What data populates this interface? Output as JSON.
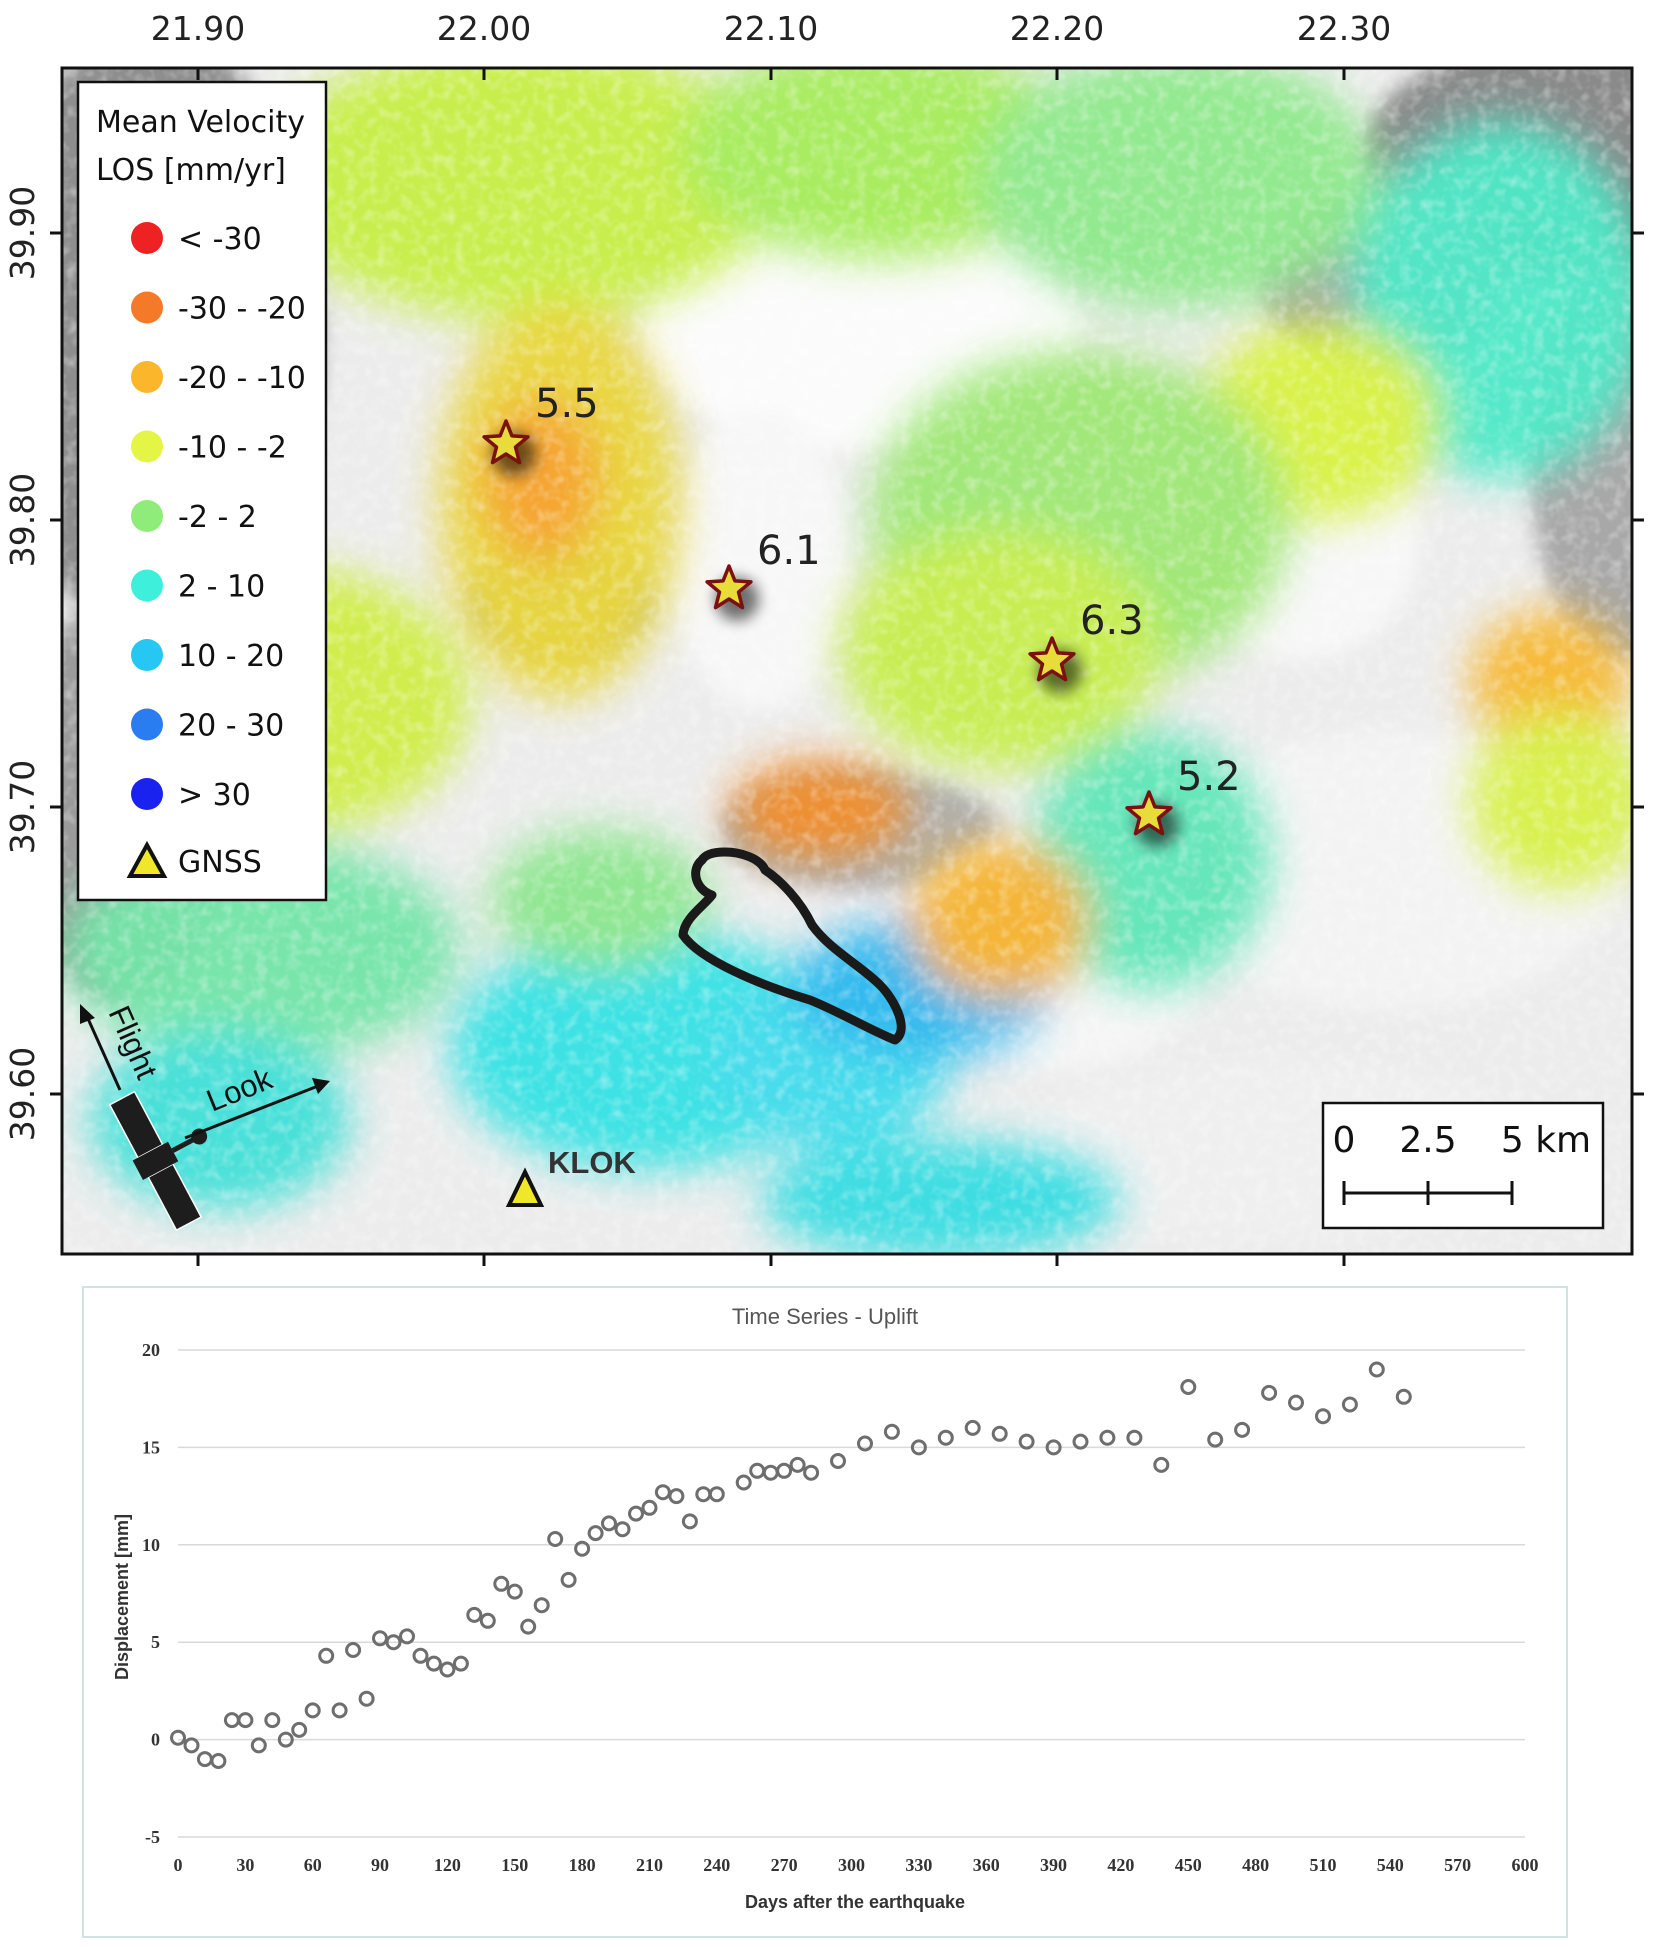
{
  "map": {
    "x_ticks": [
      "21.90",
      "22.00",
      "22.10",
      "22.20",
      "22.30"
    ],
    "y_ticks": [
      "39.90",
      "39.80",
      "39.70",
      "39.60"
    ],
    "legend": {
      "title_line1": "Mean Velocity",
      "title_line2": "LOS [mm/yr]",
      "items": [
        {
          "label": "< -30",
          "color": "#ee2222"
        },
        {
          "label": "-30 - -20",
          "color": "#f47a2a"
        },
        {
          "label": "-20 - -10",
          "color": "#fbb62c"
        },
        {
          "label": "-10 - -2",
          "color": "#e5f545"
        },
        {
          "label": "-2 - 2",
          "color": "#8fec7a"
        },
        {
          "label": "2 - 10",
          "color": "#3ef0dc"
        },
        {
          "label": "10 - 20",
          "color": "#27c7f3"
        },
        {
          "label": "20 - 30",
          "color": "#2a7df0"
        },
        {
          "label": "> 30",
          "color": "#1a22f0"
        }
      ],
      "gnss_label": "GNSS"
    },
    "earthquakes": [
      {
        "magnitude": "5.5"
      },
      {
        "magnitude": "6.1"
      },
      {
        "magnitude": "6.3"
      },
      {
        "magnitude": "5.2"
      }
    ],
    "station": "KLOK",
    "flight_label": "Flight",
    "look_label": "Look",
    "scale_bar": {
      "labels": [
        "0",
        "2.5",
        "5 km"
      ]
    }
  },
  "chart_data": {
    "type": "scatter",
    "title": "Time Series - Uplift",
    "xlabel": "Days after the earthquake",
    "ylabel": "Displacement [mm]",
    "xlim": [
      0,
      600
    ],
    "ylim": [
      -5,
      20
    ],
    "x_ticks": [
      0,
      30,
      60,
      90,
      120,
      150,
      180,
      210,
      240,
      270,
      300,
      330,
      360,
      390,
      420,
      450,
      480,
      510,
      540,
      570,
      600
    ],
    "y_ticks": [
      -5,
      0,
      5,
      10,
      15,
      20
    ],
    "grid": true,
    "points": [
      [
        0,
        0.1
      ],
      [
        6,
        -0.3
      ],
      [
        12,
        -1.0
      ],
      [
        18,
        -1.1
      ],
      [
        24,
        1.0
      ],
      [
        30,
        1.0
      ],
      [
        36,
        -0.3
      ],
      [
        42,
        1.0
      ],
      [
        48,
        0.0
      ],
      [
        54,
        0.5
      ],
      [
        60,
        1.5
      ],
      [
        66,
        4.3
      ],
      [
        72,
        1.5
      ],
      [
        78,
        4.6
      ],
      [
        84,
        2.1
      ],
      [
        90,
        5.2
      ],
      [
        96,
        5.0
      ],
      [
        102,
        5.3
      ],
      [
        108,
        4.3
      ],
      [
        114,
        3.9
      ],
      [
        120,
        3.6
      ],
      [
        126,
        3.9
      ],
      [
        132,
        6.4
      ],
      [
        138,
        6.1
      ],
      [
        144,
        8.0
      ],
      [
        150,
        7.6
      ],
      [
        156,
        5.8
      ],
      [
        162,
        6.9
      ],
      [
        168,
        10.3
      ],
      [
        174,
        8.2
      ],
      [
        180,
        9.8
      ],
      [
        186,
        10.6
      ],
      [
        192,
        11.1
      ],
      [
        198,
        10.8
      ],
      [
        204,
        11.6
      ],
      [
        210,
        11.9
      ],
      [
        216,
        12.7
      ],
      [
        222,
        12.5
      ],
      [
        228,
        11.2
      ],
      [
        234,
        12.6
      ],
      [
        240,
        12.6
      ],
      [
        252,
        13.2
      ],
      [
        258,
        13.8
      ],
      [
        264,
        13.7
      ],
      [
        270,
        13.8
      ],
      [
        276,
        14.1
      ],
      [
        282,
        13.7
      ],
      [
        294,
        14.3
      ],
      [
        306,
        15.2
      ],
      [
        318,
        15.8
      ],
      [
        330,
        15.0
      ],
      [
        342,
        15.5
      ],
      [
        354,
        16.0
      ],
      [
        366,
        15.7
      ],
      [
        378,
        15.3
      ],
      [
        390,
        15.0
      ],
      [
        402,
        15.3
      ],
      [
        414,
        15.5
      ],
      [
        426,
        15.5
      ],
      [
        438,
        14.1
      ],
      [
        450,
        18.1
      ],
      [
        462,
        15.4
      ],
      [
        474,
        15.9
      ],
      [
        486,
        17.8
      ],
      [
        498,
        17.3
      ],
      [
        510,
        16.6
      ],
      [
        522,
        17.2
      ],
      [
        534,
        19.0
      ],
      [
        546,
        17.6
      ]
    ]
  }
}
